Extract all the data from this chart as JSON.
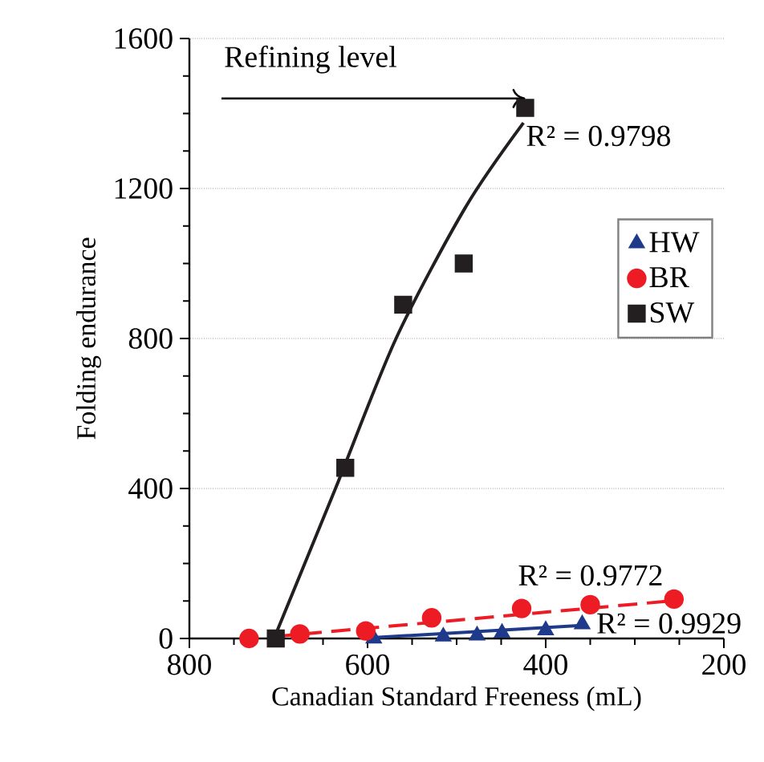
{
  "chart_data": {
    "type": "scatter",
    "xlabel": "Canadian Standard Freeness (mL)",
    "ylabel": "Folding endurance",
    "xlim": [
      800,
      200
    ],
    "xticks": [
      800,
      600,
      400,
      200
    ],
    "ylim": [
      0,
      1600
    ],
    "yticks": [
      0,
      400,
      800,
      1200,
      1600
    ],
    "grid": "y",
    "legend": "right",
    "series": [
      {
        "name": "HW",
        "color": "#1f3a8a",
        "marker": "triangle",
        "x": [
          593,
          515,
          477,
          449,
          400,
          359
        ],
        "values": [
          0,
          5,
          8,
          15,
          22,
          38
        ]
      },
      {
        "name": "BR",
        "color": "#ed1c24",
        "marker": "circle",
        "x": [
          733,
          676,
          602,
          528,
          427,
          350,
          256
        ],
        "values": [
          0,
          12,
          20,
          55,
          80,
          90,
          105
        ]
      },
      {
        "name": "SW",
        "color": "#231f20",
        "marker": "square",
        "x": [
          703,
          625,
          560,
          492,
          423
        ],
        "values": [
          0,
          455,
          890,
          1000,
          1415
        ]
      },
      {
        "type": "line",
        "color": "#231f20",
        "marker": "none",
        "line_style": "solid",
        "x": [
          705,
          636,
          568,
          490,
          425
        ],
        "values": [
          0,
          400,
          800,
          1150,
          1375
        ]
      },
      {
        "type": "line",
        "color": "#ed1c24",
        "marker": "none",
        "line_style": "dashed",
        "x": [
          705,
          260
        ],
        "values": [
          5,
          100
        ]
      },
      {
        "type": "line",
        "color": "#1f3a8a",
        "marker": "none",
        "line_style": "solid",
        "x": [
          595,
          360
        ],
        "values": [
          2,
          35
        ]
      }
    ],
    "annotations": [
      "Refining level",
      {
        "text": "R² = 0.9798",
        "x": 425,
        "y": 1340
      },
      "R² = 0.9772",
      {
        "text": "R² = 0.9929",
        "x": 346,
        "y": 40
      }
    ]
  }
}
